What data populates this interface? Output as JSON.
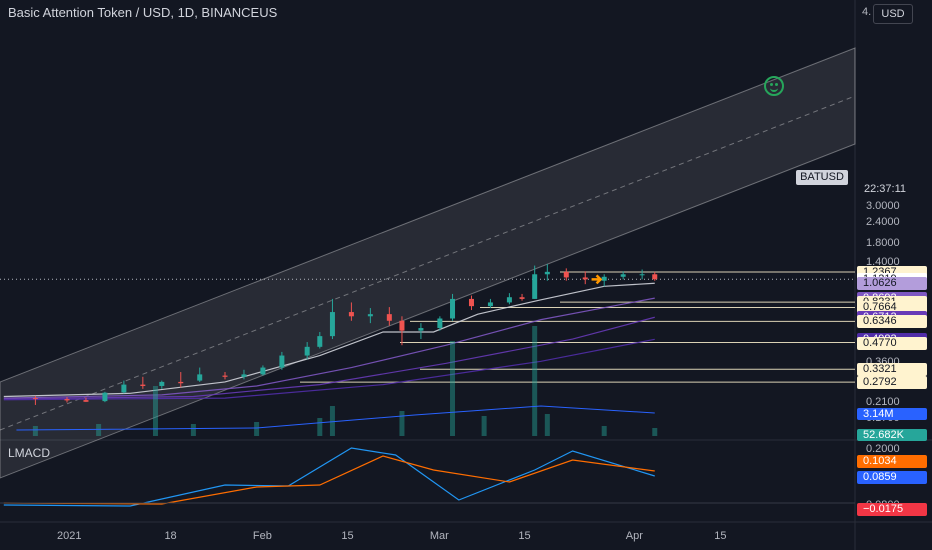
{
  "header": {
    "title": "Basic Attention Token / USD, 1D, BINANCEUS",
    "currency_button": "USD",
    "top_tick": "4."
  },
  "indicator": {
    "name": "LMACD"
  },
  "symbol_tag": "BATUSD",
  "countdown": "22:37:11",
  "price_axis_ticks": [
    {
      "label": "3.0000",
      "v": 3.0
    },
    {
      "label": "2.4000",
      "v": 2.4
    },
    {
      "label": "1.8000",
      "v": 1.8
    },
    {
      "label": "1.4000",
      "v": 1.4
    },
    {
      "label": "0.3600",
      "v": 0.36
    },
    {
      "label": "0.2600",
      "v": 0.26
    },
    {
      "label": "0.2100",
      "v": 0.21
    },
    {
      "label": "0.1700",
      "v": 0.17
    },
    {
      "label": "0.2000",
      "v": 0.2,
      "pane": "macd"
    },
    {
      "label": "0.0800",
      "v": 0.08,
      "pane": "macd"
    }
  ],
  "price_tags": [
    {
      "label": "1.2367",
      "v": 1.2367,
      "bg": "#fff3cf",
      "fg": "#131722",
      "line": true
    },
    {
      "label": "1.1219",
      "v": 1.1219,
      "bg": "#ffffff",
      "fg": "#131722",
      "line": false
    },
    {
      "label": "1.0626",
      "v": 1.0626,
      "bg": "#b39ddb",
      "fg": "#131722",
      "line": false
    },
    {
      "label": "0.8692",
      "v": 0.8692,
      "bg": "#7e57c2",
      "fg": "#ffffff",
      "line": true
    },
    {
      "label": "0.8231",
      "v": 0.8231,
      "bg": "#fff3cf",
      "fg": "#131722",
      "line": true
    },
    {
      "label": "0.7664",
      "v": 0.7664,
      "bg": "#fff3cf",
      "fg": "#131722",
      "line": true
    },
    {
      "label": "0.6713",
      "v": 0.6713,
      "bg": "#673ab7",
      "fg": "#ffffff",
      "line": false
    },
    {
      "label": "0.6346",
      "v": 0.6346,
      "bg": "#fff3cf",
      "fg": "#131722",
      "line": true
    },
    {
      "label": "0.4983",
      "v": 0.4983,
      "bg": "#512da8",
      "fg": "#ffffff",
      "line": false
    },
    {
      "label": "0.4770",
      "v": 0.477,
      "bg": "#fff3cf",
      "fg": "#131722",
      "line": true
    },
    {
      "label": "0.3321",
      "v": 0.3321,
      "bg": "#fff3cf",
      "fg": "#131722",
      "line": true
    },
    {
      "label": "0.2792",
      "v": 0.2792,
      "bg": "#fff3cf",
      "fg": "#131722",
      "line": true
    }
  ],
  "volume_tags": [
    {
      "label": "3.14M",
      "bg": "#2962ff",
      "fg": "#ffffff"
    },
    {
      "label": "52.682K",
      "bg": "#26a69a",
      "fg": "#ffffff"
    }
  ],
  "macd_tags": [
    {
      "label": "0.1034",
      "bg": "#ff6d00",
      "fg": "#ffffff"
    },
    {
      "label": "0.0859",
      "bg": "#2962ff",
      "fg": "#ffffff"
    },
    {
      "label": "−0.0175",
      "bg": "#f23645",
      "fg": "#ffffff"
    }
  ],
  "time_axis": [
    {
      "label": "2021",
      "d": 0
    },
    {
      "label": "18",
      "d": 17
    },
    {
      "label": "Feb",
      "d": 31
    },
    {
      "label": "15",
      "d": 45
    },
    {
      "label": "Mar",
      "d": 59
    },
    {
      "label": "15",
      "d": 73
    },
    {
      "label": "Apr",
      "d": 90
    },
    {
      "label": "15",
      "d": 104
    }
  ],
  "colors": {
    "up": "#26a69a",
    "down": "#ef5350",
    "bg": "#131722",
    "grid": "#1f2330",
    "channel": "#ffffff"
  },
  "chart_data": {
    "type": "candlestick",
    "symbol": "BATUSD",
    "exchange": "BINANCEUS",
    "timeframe": "1D",
    "scale": "log",
    "ylim": [
      0.16,
      3.3
    ],
    "last_price": 1.1219,
    "candles_sampled": [
      {
        "d": -5,
        "o": 0.225,
        "h": 0.232,
        "l": 0.205,
        "c": 0.222
      },
      {
        "d": 0,
        "o": 0.222,
        "h": 0.228,
        "l": 0.212,
        "c": 0.218
      },
      {
        "d": 3,
        "o": 0.219,
        "h": 0.227,
        "l": 0.214,
        "c": 0.214
      },
      {
        "d": 6,
        "o": 0.216,
        "h": 0.245,
        "l": 0.213,
        "c": 0.242
      },
      {
        "d": 9,
        "o": 0.243,
        "h": 0.285,
        "l": 0.24,
        "c": 0.27
      },
      {
        "d": 12,
        "o": 0.27,
        "h": 0.3,
        "l": 0.255,
        "c": 0.265
      },
      {
        "d": 15,
        "o": 0.265,
        "h": 0.285,
        "l": 0.255,
        "c": 0.28
      },
      {
        "d": 18,
        "o": 0.28,
        "h": 0.32,
        "l": 0.26,
        "c": 0.275
      },
      {
        "d": 21,
        "o": 0.285,
        "h": 0.34,
        "l": 0.28,
        "c": 0.31
      },
      {
        "d": 25,
        "o": 0.305,
        "h": 0.32,
        "l": 0.29,
        "c": 0.3
      },
      {
        "d": 28,
        "o": 0.3,
        "h": 0.33,
        "l": 0.29,
        "c": 0.31
      },
      {
        "d": 31,
        "o": 0.31,
        "h": 0.35,
        "l": 0.305,
        "c": 0.34
      },
      {
        "d": 34,
        "o": 0.34,
        "h": 0.42,
        "l": 0.33,
        "c": 0.4
      },
      {
        "d": 38,
        "o": 0.4,
        "h": 0.48,
        "l": 0.38,
        "c": 0.45
      },
      {
        "d": 40,
        "o": 0.45,
        "h": 0.55,
        "l": 0.44,
        "c": 0.52
      },
      {
        "d": 42,
        "o": 0.52,
        "h": 0.86,
        "l": 0.5,
        "c": 0.72
      },
      {
        "d": 45,
        "o": 0.72,
        "h": 0.82,
        "l": 0.64,
        "c": 0.68
      },
      {
        "d": 48,
        "o": 0.68,
        "h": 0.76,
        "l": 0.62,
        "c": 0.7
      },
      {
        "d": 51,
        "o": 0.7,
        "h": 0.77,
        "l": 0.6,
        "c": 0.64
      },
      {
        "d": 53,
        "o": 0.64,
        "h": 0.68,
        "l": 0.46,
        "c": 0.56
      },
      {
        "d": 56,
        "o": 0.56,
        "h": 0.62,
        "l": 0.5,
        "c": 0.58
      },
      {
        "d": 59,
        "o": 0.58,
        "h": 0.68,
        "l": 0.56,
        "c": 0.66
      },
      {
        "d": 61,
        "o": 0.66,
        "h": 0.92,
        "l": 0.64,
        "c": 0.86
      },
      {
        "d": 64,
        "o": 0.86,
        "h": 0.9,
        "l": 0.74,
        "c": 0.78
      },
      {
        "d": 67,
        "o": 0.78,
        "h": 0.86,
        "l": 0.76,
        "c": 0.82
      },
      {
        "d": 70,
        "o": 0.82,
        "h": 0.93,
        "l": 0.8,
        "c": 0.88
      },
      {
        "d": 72,
        "o": 0.88,
        "h": 0.92,
        "l": 0.84,
        "c": 0.86
      },
      {
        "d": 74,
        "o": 0.86,
        "h": 1.35,
        "l": 0.86,
        "c": 1.2
      },
      {
        "d": 76,
        "o": 1.2,
        "h": 1.38,
        "l": 1.1,
        "c": 1.24
      },
      {
        "d": 79,
        "o": 1.24,
        "h": 1.3,
        "l": 1.1,
        "c": 1.15
      },
      {
        "d": 82,
        "o": 1.15,
        "h": 1.25,
        "l": 1.05,
        "c": 1.12
      },
      {
        "d": 85,
        "o": 1.1,
        "h": 1.2,
        "l": 1.02,
        "c": 1.16
      },
      {
        "d": 88,
        "o": 1.16,
        "h": 1.25,
        "l": 1.12,
        "c": 1.2
      },
      {
        "d": 91,
        "o": 1.2,
        "h": 1.28,
        "l": 1.12,
        "c": 1.2
      },
      {
        "d": 93,
        "o": 1.2,
        "h": 1.24,
        "l": 1.1,
        "c": 1.1219
      }
    ],
    "horizontal_levels": [
      1.2367,
      0.8231,
      0.7664,
      0.6346,
      0.477,
      0.3321,
      0.2792
    ],
    "moving_averages": [
      {
        "color": "#d1d4dc",
        "last": 1.0626
      },
      {
        "color": "#7e57c2",
        "last": 0.8692
      },
      {
        "color": "#673ab7",
        "last": 0.6713
      },
      {
        "color": "#512da8",
        "last": 0.4983
      }
    ],
    "volume": {
      "last": "3.14M",
      "ma_last": "52.682K"
    },
    "lmacd": {
      "macd": 0.0859,
      "signal": 0.1034,
      "histogram": -0.0175
    }
  }
}
